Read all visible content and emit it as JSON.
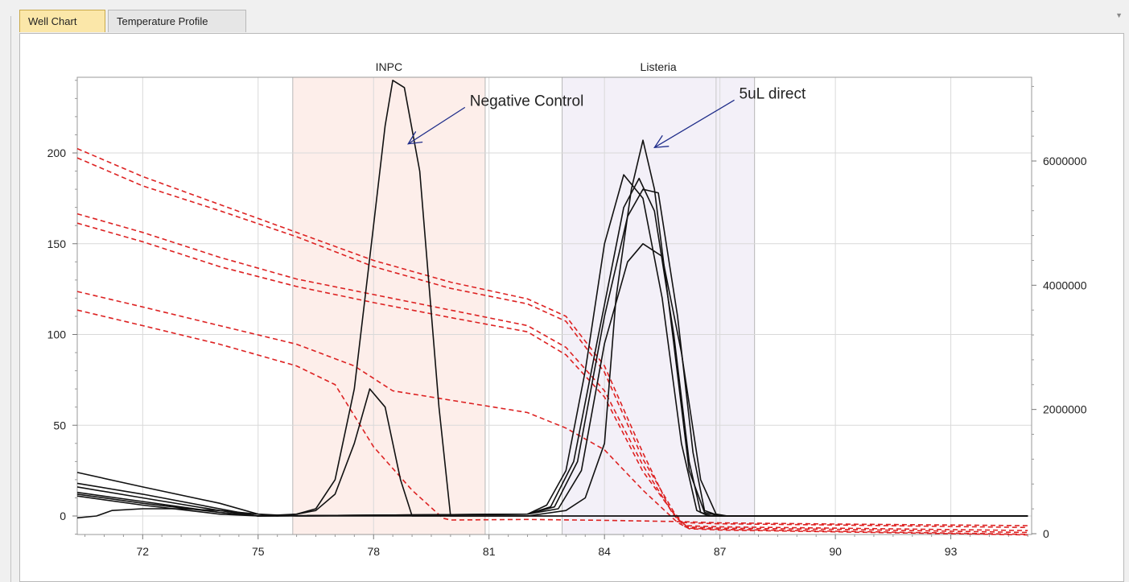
{
  "tabs": [
    {
      "label": "Well Chart",
      "active": true
    },
    {
      "label": "Temperature Profile",
      "active": false
    }
  ],
  "chart_data": {
    "type": "line",
    "title": "",
    "xlabel": "",
    "ylabel": "",
    "xlim": [
      70.3,
      95.1
    ],
    "ylim": [
      -10,
      240
    ],
    "y2lim": [
      0,
      7600000
    ],
    "grid": true,
    "x_ticks": [
      72,
      75,
      78,
      81,
      84,
      87,
      90,
      93
    ],
    "y_ticks": [
      0,
      50,
      100,
      150,
      200
    ],
    "y2_ticks": [
      0,
      2000000,
      4000000,
      6000000
    ],
    "regions": [
      {
        "label": "INPC",
        "x0": 75.9,
        "x1": 80.9,
        "dividers": [],
        "color": "#fdeeea"
      },
      {
        "label": "Listeria",
        "x0": 82.9,
        "x1": 87.9,
        "dividers": [
          86.9
        ],
        "color": "#f3f0f8"
      }
    ],
    "annotations": [
      {
        "text": "Negative Control",
        "x": 78.9,
        "y": 205,
        "text_x": 80.5,
        "text_y": 226
      },
      {
        "text": "5uL direct",
        "x": 85.3,
        "y": 203,
        "text_x": 87.5,
        "text_y": 230
      }
    ],
    "melt_peaks_color": "#111111",
    "melt_curves_color": "#dd2222",
    "series_peaks": [
      {
        "points": [
          [
            70.3,
            24
          ],
          [
            72,
            16
          ],
          [
            74,
            7
          ],
          [
            75,
            1
          ],
          [
            75.5,
            0
          ],
          [
            76,
            1
          ],
          [
            76.5,
            4
          ],
          [
            77,
            20
          ],
          [
            77.5,
            70
          ],
          [
            78,
            160
          ],
          [
            78.3,
            215
          ],
          [
            78.5,
            240
          ],
          [
            78.8,
            236
          ],
          [
            79.2,
            190
          ],
          [
            79.7,
            60
          ],
          [
            80,
            0
          ],
          [
            81,
            0
          ],
          [
            82,
            0
          ],
          [
            95,
            0
          ]
        ]
      },
      {
        "points": [
          [
            70.3,
            18
          ],
          [
            72,
            12
          ],
          [
            74,
            4
          ],
          [
            75,
            0
          ],
          [
            76,
            1
          ],
          [
            76.5,
            3
          ],
          [
            77,
            12
          ],
          [
            77.5,
            40
          ],
          [
            77.9,
            70
          ],
          [
            78.3,
            60
          ],
          [
            78.7,
            20
          ],
          [
            79,
            0
          ],
          [
            81,
            0
          ],
          [
            95,
            0
          ]
        ]
      },
      {
        "points": [
          [
            70.3,
            16
          ],
          [
            72,
            10
          ],
          [
            74,
            3
          ],
          [
            75,
            0
          ],
          [
            76,
            0
          ],
          [
            82,
            1
          ],
          [
            82.5,
            6
          ],
          [
            83,
            25
          ],
          [
            83.5,
            80
          ],
          [
            84,
            150
          ],
          [
            84.5,
            188
          ],
          [
            85,
            175
          ],
          [
            85.5,
            120
          ],
          [
            86,
            40
          ],
          [
            86.4,
            3
          ],
          [
            86.7,
            0
          ],
          [
            95,
            0
          ]
        ]
      },
      {
        "points": [
          [
            70.3,
            13
          ],
          [
            72,
            8
          ],
          [
            74,
            2
          ],
          [
            75,
            0
          ],
          [
            82,
            1
          ],
          [
            82.6,
            5
          ],
          [
            83.2,
            30
          ],
          [
            83.8,
            95
          ],
          [
            84.5,
            170
          ],
          [
            84.9,
            186
          ],
          [
            85.3,
            168
          ],
          [
            85.8,
            100
          ],
          [
            86.2,
            30
          ],
          [
            86.5,
            2
          ],
          [
            86.8,
            0
          ],
          [
            95,
            0
          ]
        ]
      },
      {
        "points": [
          [
            70.3,
            12
          ],
          [
            72,
            7
          ],
          [
            74,
            2
          ],
          [
            75,
            0
          ],
          [
            82,
            1
          ],
          [
            82.7,
            5
          ],
          [
            83.3,
            30
          ],
          [
            84,
            110
          ],
          [
            84.6,
            165
          ],
          [
            85,
            180
          ],
          [
            85.4,
            178
          ],
          [
            85.9,
            110
          ],
          [
            86.3,
            35
          ],
          [
            86.6,
            3
          ],
          [
            87,
            0
          ],
          [
            95,
            0
          ]
        ]
      },
      {
        "points": [
          [
            70.3,
            11
          ],
          [
            72,
            6
          ],
          [
            74,
            1
          ],
          [
            75,
            0
          ],
          [
            82,
            1
          ],
          [
            82.8,
            4
          ],
          [
            83.4,
            25
          ],
          [
            84,
            95
          ],
          [
            84.6,
            140
          ],
          [
            85,
            150
          ],
          [
            85.5,
            143
          ],
          [
            86,
            90
          ],
          [
            86.5,
            20
          ],
          [
            86.9,
            1
          ],
          [
            87.2,
            0
          ],
          [
            95,
            0
          ]
        ]
      },
      {
        "points": [
          [
            70.3,
            -1
          ],
          [
            70.8,
            0
          ],
          [
            71.2,
            3
          ],
          [
            72,
            4
          ],
          [
            73,
            4
          ],
          [
            74,
            3
          ],
          [
            75,
            1
          ],
          [
            76,
            0
          ],
          [
            82,
            0
          ],
          [
            83,
            3
          ],
          [
            83.5,
            10
          ],
          [
            84,
            40
          ],
          [
            84.3,
            120
          ],
          [
            84.7,
            180
          ],
          [
            85,
            207
          ],
          [
            85.3,
            180
          ],
          [
            85.8,
            95
          ],
          [
            86.2,
            25
          ],
          [
            86.6,
            2
          ],
          [
            87,
            0
          ],
          [
            95,
            0
          ]
        ]
      }
    ],
    "series_melt": [
      {
        "points": [
          [
            70.3,
            6200000
          ],
          [
            72,
            5750000
          ],
          [
            74,
            5300000
          ],
          [
            76,
            4850000
          ],
          [
            78,
            4400000
          ],
          [
            80,
            4050000
          ],
          [
            82,
            3780000
          ],
          [
            83,
            3500000
          ],
          [
            84,
            2700000
          ],
          [
            85,
            1300000
          ],
          [
            85.7,
            400000
          ],
          [
            86,
            180000
          ],
          [
            87,
            160000
          ],
          [
            90,
            140000
          ],
          [
            95,
            100000
          ]
        ]
      },
      {
        "points": [
          [
            70.3,
            6050000
          ],
          [
            72,
            5600000
          ],
          [
            74,
            5200000
          ],
          [
            76,
            4780000
          ],
          [
            78,
            4300000
          ],
          [
            80,
            3950000
          ],
          [
            82,
            3700000
          ],
          [
            83,
            3420000
          ],
          [
            84,
            2600000
          ],
          [
            85,
            1200000
          ],
          [
            85.8,
            350000
          ],
          [
            86.1,
            130000
          ],
          [
            87,
            110000
          ],
          [
            90,
            90000
          ],
          [
            95,
            50000
          ]
        ]
      },
      {
        "points": [
          [
            70.3,
            5150000
          ],
          [
            72,
            4850000
          ],
          [
            74,
            4450000
          ],
          [
            76,
            4100000
          ],
          [
            78,
            3850000
          ],
          [
            80,
            3600000
          ],
          [
            82,
            3350000
          ],
          [
            83,
            3000000
          ],
          [
            84,
            2300000
          ],
          [
            85,
            1100000
          ],
          [
            85.8,
            300000
          ],
          [
            86.1,
            110000
          ],
          [
            87,
            90000
          ],
          [
            90,
            70000
          ],
          [
            95,
            20000
          ]
        ]
      },
      {
        "points": [
          [
            70.3,
            5000000
          ],
          [
            72,
            4700000
          ],
          [
            74,
            4300000
          ],
          [
            76,
            3980000
          ],
          [
            78,
            3720000
          ],
          [
            80,
            3480000
          ],
          [
            82,
            3250000
          ],
          [
            83,
            2880000
          ],
          [
            84,
            2200000
          ],
          [
            85,
            1000000
          ],
          [
            85.9,
            240000
          ],
          [
            86.2,
            90000
          ],
          [
            87,
            70000
          ],
          [
            90,
            40000
          ],
          [
            95,
            -10000
          ]
        ]
      },
      {
        "points": [
          [
            70.3,
            3900000
          ],
          [
            72,
            3650000
          ],
          [
            74,
            3350000
          ],
          [
            76,
            3050000
          ],
          [
            77.5,
            2700000
          ],
          [
            78.5,
            2300000
          ],
          [
            80,
            2150000
          ],
          [
            82,
            1950000
          ],
          [
            83,
            1700000
          ],
          [
            84,
            1350000
          ],
          [
            85,
            700000
          ],
          [
            85.9,
            180000
          ],
          [
            86.2,
            80000
          ],
          [
            87,
            60000
          ],
          [
            90,
            30000
          ],
          [
            95,
            -20000
          ]
        ]
      },
      {
        "points": [
          [
            70.3,
            3600000
          ],
          [
            72,
            3350000
          ],
          [
            74,
            3050000
          ],
          [
            76,
            2700000
          ],
          [
            77,
            2400000
          ],
          [
            78,
            1400000
          ],
          [
            79,
            700000
          ],
          [
            79.8,
            250000
          ],
          [
            80,
            220000
          ],
          [
            82,
            230000
          ],
          [
            84,
            215000
          ],
          [
            86,
            195000
          ],
          [
            87,
            175000
          ],
          [
            90,
            155000
          ],
          [
            95,
            130000
          ]
        ]
      }
    ]
  }
}
